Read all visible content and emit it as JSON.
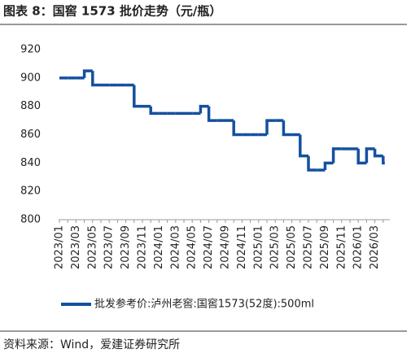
{
  "chart_data": {
    "type": "line",
    "step": true,
    "title": "图表 8：国窖 1573 批价走势（元/瓶）",
    "source": "资料来源：Wind，爱建证券研究所",
    "categories": [
      "2023/01",
      null,
      "2023/03",
      null,
      "2023/05",
      null,
      "2023/07",
      null,
      "2023/09",
      null,
      "2023/11",
      null,
      "2024/01",
      null,
      "2024/03",
      null,
      "2024/05",
      null,
      "2024/07",
      null,
      "2024/09",
      null,
      "2024/11",
      null,
      "2025/01",
      null,
      "2025/03",
      null,
      "2025/05",
      null,
      "2025/07",
      null,
      "2025/09",
      null,
      "2025/11",
      null,
      "2026/01",
      null,
      "2026/03",
      null
    ],
    "series": [
      {
        "name": "批发参考价:泸州老窖:国窖1573(52度):500ml",
        "color": "#1450a0",
        "values": [
          900,
          900,
          900,
          905,
          895,
          895,
          895,
          895,
          895,
          880,
          880,
          875,
          875,
          875,
          875,
          875,
          875,
          880,
          870,
          870,
          870,
          860,
          860,
          860,
          860,
          870,
          870,
          860,
          860,
          845,
          835,
          835,
          840,
          850,
          850,
          850,
          840,
          850,
          845,
          840
        ]
      }
    ],
    "ylim": [
      800,
      920
    ],
    "yticks": [
      800,
      820,
      840,
      860,
      880,
      900,
      920
    ]
  }
}
